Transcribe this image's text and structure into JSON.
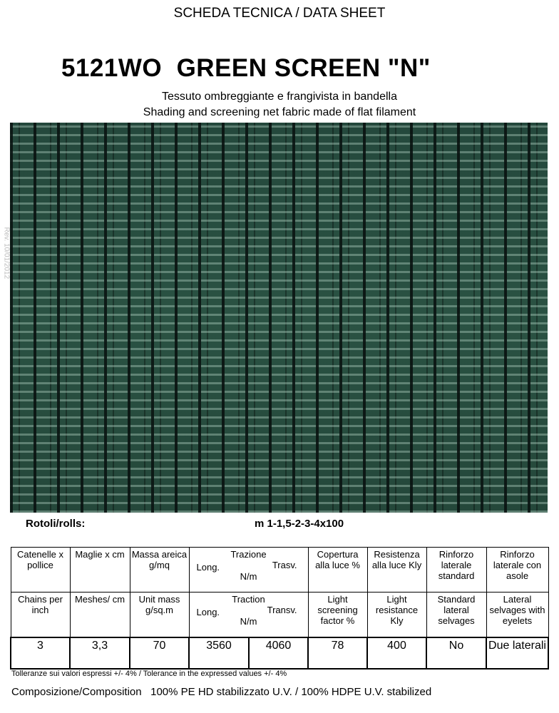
{
  "header": "SCHEDA TECNICA / DATA SHEET",
  "title": "5121WO  GREEN SCREEN \"N\"",
  "subtitle_it": "Tessuto ombreggiante e frangivista in bandella",
  "subtitle_en": "Shading and screening net fabric made of flat filament",
  "revision": "Rev. 10/01/2012",
  "rolls": {
    "label": "Rotoli/rolls:",
    "value": "m 1-1,5-2-3-4x100"
  },
  "table": {
    "it": {
      "c1": "Catenelle x pollice",
      "c2": "Maglie x cm",
      "c3": "Massa areica g/mq",
      "trazione": "Trazione",
      "long": "Long.",
      "trasv": "Trasv.",
      "unit": "N/m",
      "c5": "Copertura alla luce %",
      "c6": "Resistenza alla luce Kly",
      "c7": "Rinforzo laterale standard",
      "c8": "Rinforzo laterale con asole"
    },
    "en": {
      "c1": "Chains per inch",
      "c2": "Meshes/ cm",
      "c3": "Unit mass g/sq.m",
      "trazione": "Traction",
      "long": "Long.",
      "trasv": "Transv.",
      "unit": "N/m",
      "c5": "Light screening factor %",
      "c6": "Light resistance Kly",
      "c7": "Standard lateral selvages",
      "c8": "Lateral selvages with eyelets"
    },
    "values": [
      "3",
      "3,3",
      "70",
      "3560",
      "4060",
      "78",
      "400",
      "No",
      "Due laterali"
    ]
  },
  "tolerance": "Tolleranze sui valori espressi +/- 4%  /  Tolerance in the expressed values +/- 4%",
  "composition": {
    "label": "Composizione/Composition",
    "value": "100% PE HD stabilizzato U.V. / 100% HDPE U.V. stabilized"
  },
  "colors": {
    "fabric": "#2a5243"
  }
}
